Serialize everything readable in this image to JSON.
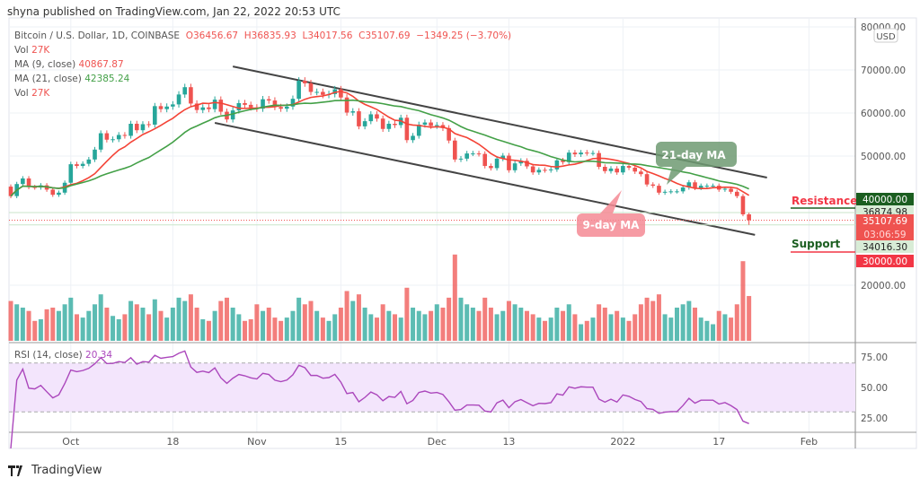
{
  "published": "shyna published on TradingView.com, Jan 22, 2022 20:53 UTC",
  "legend": {
    "symbol": "Bitcoin / U.S. Dollar, 1D, COINBASE",
    "open": "O36456.67",
    "high": "H36835.93",
    "low": "L34017.56",
    "close": "C35107.69",
    "change": "−1349.25 (−3.70%)",
    "vol_label": "Vol",
    "vol_value": "27K",
    "ma9_label": "MA (9, close)",
    "ma9_value": "40867.87",
    "ma21_label": "MA (21, close)",
    "ma21_value": "42385.24",
    "vol2_label": "Vol",
    "vol2_value": "27K",
    "rsi_label": "RSI (14, close)",
    "rsi_value": "20.34"
  },
  "logo_text": "TradingView",
  "colors": {
    "up": "#26a69a",
    "down": "#ef5350",
    "ma9": "#f44336",
    "ma21": "#43a047",
    "rsi": "#ab47bc",
    "resistance": "#f23645",
    "support": "#1b5e20"
  },
  "chart_data": {
    "type": "candlestick",
    "currency": "USD",
    "start_date": "2021-09-21",
    "y_ticks": [
      "80000.00",
      "70000.00",
      "60000.00",
      "50000.00",
      "20000.00"
    ],
    "y_range": [
      7000,
      82000
    ],
    "x_ticks": [
      [
        "2021-10-01",
        "Oct"
      ],
      [
        "2021-10-18",
        "18"
      ],
      [
        "2021-11-01",
        "Nov"
      ],
      [
        "2021-11-15",
        "15"
      ],
      [
        "2021-12-01",
        "Dec"
      ],
      [
        "2021-12-13",
        "13"
      ],
      [
        "2022-01-01",
        "2022"
      ],
      [
        "2022-01-17",
        "17"
      ],
      [
        "2022-02-01",
        "Feb"
      ]
    ],
    "closes": [
      40700,
      43500,
      44800,
      42800,
      42700,
      43200,
      42200,
      41000,
      41500,
      43800,
      48100,
      47700,
      48200,
      49200,
      51500,
      55300,
      53800,
      53900,
      54900,
      54700,
      57500,
      56000,
      57400,
      57300,
      61600,
      60900,
      61500,
      62000,
      64300,
      66000,
      62200,
      60700,
      61300,
      60900,
      63100,
      60300,
      58500,
      60600,
      62300,
      61900,
      61300,
      61000,
      63200,
      62900,
      61400,
      61000,
      61500,
      63300,
      67500,
      66900,
      64900,
      64900,
      64200,
      64400,
      65500,
      63600,
      60100,
      60400,
      56900,
      58100,
      59700,
      58700,
      56300,
      57500,
      57200,
      58900,
      53700,
      54700,
      57300,
      57800,
      57000,
      57200,
      56500,
      53600,
      49200,
      49400,
      50600,
      50600,
      50500,
      47700,
      47200,
      49400,
      50100,
      46700,
      48300,
      48900,
      47600,
      46200,
      46800,
      46700,
      46900,
      49000,
      48600,
      50800,
      50400,
      50800,
      50700,
      50700,
      47500,
      46500,
      47100,
      46200,
      47700,
      47300,
      46400,
      45800,
      43400,
      43100,
      41500,
      41700,
      41800,
      41800,
      42700,
      43900,
      42600,
      43100,
      43100,
      43100,
      42200,
      42400,
      41700,
      40700,
      36456.67,
      35107.69
    ],
    "first_open": 42900,
    "last_high": 36835.93,
    "last_low": 34017.56,
    "volumes_k": [
      24,
      22,
      20,
      18,
      12,
      13,
      19,
      20,
      18,
      22,
      26,
      16,
      14,
      18,
      22,
      28,
      20,
      15,
      13,
      16,
      24,
      22,
      20,
      16,
      25,
      18,
      14,
      20,
      26,
      24,
      28,
      20,
      13,
      12,
      18,
      24,
      26,
      20,
      16,
      12,
      13,
      22,
      18,
      20,
      14,
      12,
      14,
      18,
      26,
      22,
      24,
      18,
      14,
      12,
      16,
      20,
      30,
      24,
      28,
      20,
      16,
      14,
      22,
      18,
      16,
      14,
      32,
      20,
      18,
      16,
      18,
      22,
      20,
      26,
      52,
      26,
      22,
      20,
      18,
      26,
      20,
      16,
      18,
      24,
      22,
      20,
      18,
      16,
      14,
      12,
      14,
      20,
      18,
      22,
      16,
      10,
      12,
      14,
      22,
      20,
      16,
      18,
      14,
      12,
      16,
      22,
      26,
      24,
      28,
      16,
      14,
      20,
      22,
      24,
      20,
      14,
      12,
      10,
      18,
      16,
      14,
      22,
      48,
      27
    ],
    "ma_series": [
      {
        "name": "MA (9, close)",
        "period": 9
      },
      {
        "name": "MA (21, close)",
        "period": 21
      }
    ],
    "rsi_period": 14,
    "rsi_ticks": [
      "75.00",
      "50.00",
      "25.00"
    ],
    "price_labels": [
      {
        "text": "40000.00",
        "kind": "resistance"
      },
      {
        "text": "36874.98",
        "kind": "line"
      },
      {
        "text": "35107.69",
        "kind": "last"
      },
      {
        "text": "03:06:59",
        "kind": "countdown"
      },
      {
        "text": "34016.30",
        "kind": "line"
      },
      {
        "text": "30000.00",
        "kind": "support"
      }
    ],
    "channel": {
      "upper": [
        [
          "2021-10-28",
          70800
        ],
        [
          "2022-01-25",
          45000
        ]
      ],
      "lower": [
        [
          "2021-10-25",
          57700
        ],
        [
          "2022-01-23",
          31700
        ]
      ]
    },
    "annotations": {
      "ma21": "21-day MA",
      "ma9": "9-day MA",
      "resistance": "Resistance",
      "support": "Support"
    }
  }
}
